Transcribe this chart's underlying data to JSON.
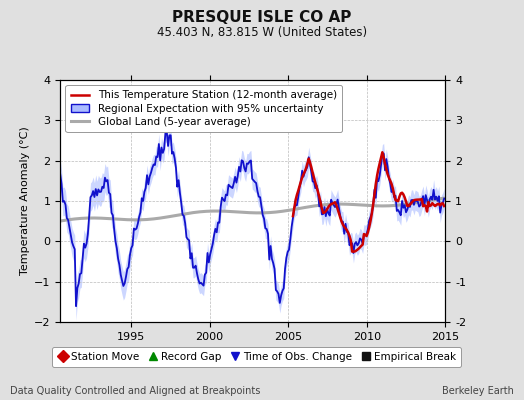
{
  "title": "PRESQUE ISLE CO AP",
  "subtitle": "45.403 N, 83.815 W (United States)",
  "ylabel": "Temperature Anomaly (°C)",
  "xlim": [
    1990.5,
    2015.0
  ],
  "ylim": [
    -2.0,
    4.0
  ],
  "yticks": [
    -2,
    -1,
    0,
    1,
    2,
    3,
    4
  ],
  "xticks": [
    1995,
    2000,
    2005,
    2010,
    2015
  ],
  "footer_left": "Data Quality Controlled and Aligned at Breakpoints",
  "footer_right": "Berkeley Earth",
  "station_color": "#cc0000",
  "regional_color": "#1111cc",
  "regional_band_color": "#aabbff",
  "global_color": "#aaaaaa",
  "station_lw": 1.8,
  "regional_lw": 1.3,
  "global_lw": 2.2,
  "legend1_items": [
    {
      "label": "This Temperature Station (12-month average)",
      "color": "#cc0000",
      "lw": 1.8
    },
    {
      "label": "Regional Expectation with 95% uncertainty",
      "color": "#1111cc",
      "lw": 1.3
    },
    {
      "label": "Global Land (5-year average)",
      "color": "#aaaaaa",
      "lw": 2.2
    }
  ],
  "legend2_items": [
    {
      "label": "Station Move",
      "marker": "D",
      "color": "#cc0000"
    },
    {
      "label": "Record Gap",
      "marker": "^",
      "color": "#008800"
    },
    {
      "label": "Time of Obs. Change",
      "marker": "v",
      "color": "#1111cc"
    },
    {
      "label": "Empirical Break",
      "marker": "s",
      "color": "#111111"
    }
  ],
  "background_color": "#e0e0e0",
  "plot_bg_color": "#ffffff",
  "grid_color": "#bbbbbb",
  "title_fontsize": 11,
  "subtitle_fontsize": 8.5,
  "tick_fontsize": 8,
  "legend_fontsize": 7.5,
  "footer_fontsize": 7
}
